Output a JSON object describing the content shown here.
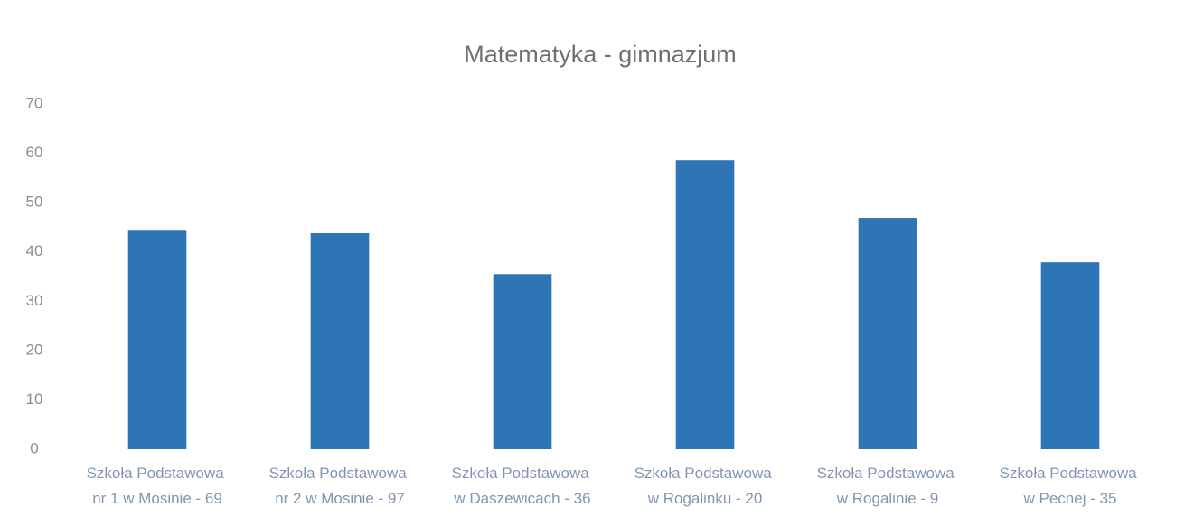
{
  "chart_data": {
    "type": "bar",
    "title": "Matematyka - gimnazjum",
    "categories": [
      "Szkoła Podstawowa nr 1 w Mosinie - 69",
      "Szkoła Podstawowa nr 2 w Mosinie - 97",
      "Szkoła Podstawowa w Daszewicach - 36",
      "Szkoła Podstawowa w Rogalinku - 20",
      "Szkoła Podstawowa w Rogalinie - 9",
      "Szkoła Podstawowa w Pecnej - 35"
    ],
    "values": [
      44.3,
      43.8,
      35.5,
      58.6,
      46.9,
      37.9
    ],
    "color": "#2e75b6",
    "ylim": [
      0,
      70
    ],
    "yticks": [
      0,
      10,
      20,
      30,
      40,
      50,
      60,
      70
    ],
    "grid": false
  }
}
